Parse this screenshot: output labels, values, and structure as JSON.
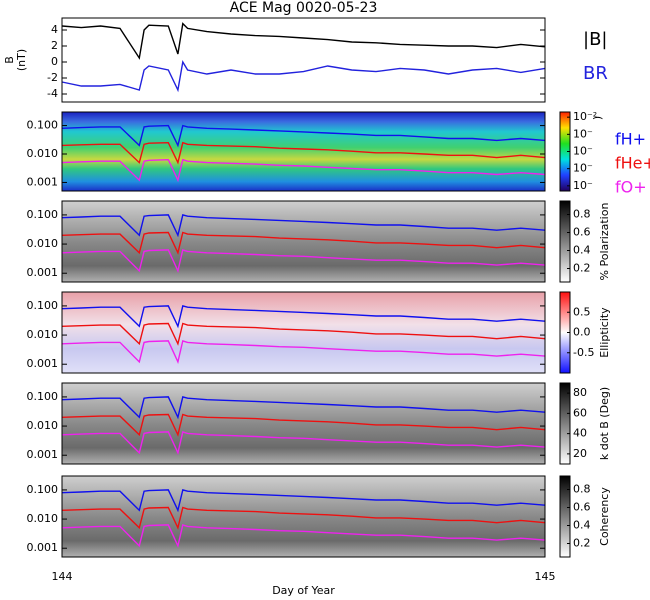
{
  "chart_data": [
    {
      "type": "line",
      "title": "ACE Mag 0020-05-23",
      "ylabel": [
        "B",
        "(nT)"
      ],
      "x": [
        144,
        144.04,
        144.08,
        144.12,
        144.16,
        144.17,
        144.18,
        144.22,
        144.24,
        144.25,
        144.26,
        144.3,
        144.35,
        144.4,
        144.45,
        144.5,
        144.55,
        144.6,
        144.65,
        144.7,
        144.75,
        144.8,
        144.85,
        144.9,
        144.95,
        145
      ],
      "xlim": [
        144,
        145
      ],
      "ylim": [
        -5,
        5.5
      ],
      "yticks": [
        4,
        2,
        0,
        -2,
        -4
      ],
      "series": [
        {
          "name": "|B|",
          "color": "#000000",
          "values": [
            4.5,
            4.3,
            4.5,
            4.2,
            0.5,
            4,
            4.6,
            4.5,
            1,
            4.8,
            4.2,
            3.8,
            3.5,
            3.3,
            3.2,
            3.0,
            2.8,
            2.5,
            2.4,
            2.2,
            2.1,
            2.0,
            2.0,
            1.8,
            2.2,
            1.9
          ]
        },
        {
          "name": "BR",
          "color": "#2222dd",
          "values": [
            -2.5,
            -3,
            -3,
            -2.8,
            -3.5,
            -1,
            -0.5,
            -1,
            -3.5,
            0,
            -1,
            -1.5,
            -1,
            -1.5,
            -1.5,
            -1.2,
            -0.5,
            -1,
            -1.2,
            -0.8,
            -1,
            -1.5,
            -1,
            -0.8,
            -1.3,
            -0.8
          ]
        }
      ]
    },
    {
      "type": "spectrogram",
      "log_y": true,
      "colormap": "rainbow",
      "legend": true,
      "x": [
        144,
        144.04,
        144.08,
        144.12,
        144.16,
        144.17,
        144.18,
        144.22,
        144.24,
        144.25,
        144.26,
        144.3,
        144.35,
        144.4,
        144.45,
        144.5,
        144.55,
        144.6,
        144.65,
        144.7,
        144.75,
        144.8,
        144.85,
        144.9,
        144.95,
        145
      ],
      "xlim": [
        144,
        145
      ],
      "ylim": [
        0.0005,
        0.3
      ],
      "yticks": [
        {
          "value": 0.1,
          "label": "0.100"
        },
        {
          "value": 0.01,
          "label": "0.010"
        },
        0.001
      ],
      "colorbar": {
        "label": ")",
        "log": true,
        "lim": [
          5e-07,
          0.02
        ],
        "ticks": [
          {
            "value": 0.01,
            "label": "10⁻²"
          },
          {
            "value": 0.001,
            "label": "10⁻"
          },
          {
            "value": 0.0001,
            "label": "10⁻"
          },
          {
            "value": 1e-05,
            "label": "10⁻"
          },
          {
            "value": 1e-06,
            "label": "10⁻"
          }
        ]
      },
      "series": [
        {
          "name": "fH+",
          "color": "#1010ee",
          "values": [
            0.08,
            0.085,
            0.09,
            0.09,
            0.02,
            0.09,
            0.095,
            0.1,
            0.02,
            0.1,
            0.09,
            0.08,
            0.075,
            0.07,
            0.065,
            0.06,
            0.055,
            0.05,
            0.045,
            0.045,
            0.04,
            0.035,
            0.035,
            0.03,
            0.035,
            0.03
          ]
        },
        {
          "name": "fHe+",
          "color": "#ee1010",
          "values": [
            0.02,
            0.021,
            0.022,
            0.022,
            0.005,
            0.022,
            0.024,
            0.025,
            0.005,
            0.025,
            0.022,
            0.02,
            0.019,
            0.018,
            0.016,
            0.015,
            0.014,
            0.0125,
            0.011,
            0.011,
            0.01,
            0.009,
            0.009,
            0.0075,
            0.009,
            0.0075
          ]
        },
        {
          "name": "fO+",
          "color": "#ee22ee",
          "values": [
            0.005,
            0.0053,
            0.0056,
            0.0056,
            0.0012,
            0.0056,
            0.006,
            0.0063,
            0.0012,
            0.0063,
            0.0056,
            0.005,
            0.0047,
            0.0044,
            0.004,
            0.0038,
            0.0034,
            0.0031,
            0.0028,
            0.0028,
            0.0025,
            0.0022,
            0.0022,
            0.0019,
            0.0022,
            0.0019
          ]
        }
      ]
    },
    {
      "type": "spectrogram",
      "log_y": true,
      "colormap": "gray",
      "x": [
        144,
        144.04,
        144.08,
        144.12,
        144.16,
        144.17,
        144.18,
        144.22,
        144.24,
        144.25,
        144.26,
        144.3,
        144.35,
        144.4,
        144.45,
        144.5,
        144.55,
        144.6,
        144.65,
        144.7,
        144.75,
        144.8,
        144.85,
        144.9,
        144.95,
        145
      ],
      "xlim": [
        144,
        145
      ],
      "ylim": [
        0.0005,
        0.3
      ],
      "yticks": [
        {
          "value": 0.1,
          "label": "0.100"
        },
        {
          "value": 0.01,
          "label": "0.010"
        },
        0.001
      ],
      "colorbar": {
        "label": "% Polarization",
        "lim": [
          0.05,
          0.95
        ],
        "ticks": [
          0.8,
          0.6,
          0.4,
          0.2
        ]
      },
      "series": [
        {
          "color": "#1010ee",
          "values": [
            0.08,
            0.085,
            0.09,
            0.09,
            0.02,
            0.09,
            0.095,
            0.1,
            0.02,
            0.1,
            0.09,
            0.08,
            0.075,
            0.07,
            0.065,
            0.06,
            0.055,
            0.05,
            0.045,
            0.045,
            0.04,
            0.035,
            0.035,
            0.03,
            0.035,
            0.03
          ]
        },
        {
          "color": "#ee1010",
          "values": [
            0.02,
            0.021,
            0.022,
            0.022,
            0.005,
            0.022,
            0.024,
            0.025,
            0.005,
            0.025,
            0.022,
            0.02,
            0.019,
            0.018,
            0.016,
            0.015,
            0.014,
            0.0125,
            0.011,
            0.011,
            0.01,
            0.009,
            0.009,
            0.0075,
            0.009,
            0.0075
          ]
        },
        {
          "color": "#ee22ee",
          "values": [
            0.005,
            0.0053,
            0.0056,
            0.0056,
            0.0012,
            0.0056,
            0.006,
            0.0063,
            0.0012,
            0.0063,
            0.0056,
            0.005,
            0.0047,
            0.0044,
            0.004,
            0.0038,
            0.0034,
            0.0031,
            0.0028,
            0.0028,
            0.0025,
            0.0022,
            0.0022,
            0.0019,
            0.0022,
            0.0019
          ]
        }
      ]
    },
    {
      "type": "spectrogram",
      "log_y": true,
      "colormap": "bwr",
      "x": [
        144,
        144.04,
        144.08,
        144.12,
        144.16,
        144.17,
        144.18,
        144.22,
        144.24,
        144.25,
        144.26,
        144.3,
        144.35,
        144.4,
        144.45,
        144.5,
        144.55,
        144.6,
        144.65,
        144.7,
        144.75,
        144.8,
        144.85,
        144.9,
        144.95,
        145
      ],
      "xlim": [
        144,
        145
      ],
      "ylim": [
        0.0005,
        0.3
      ],
      "yticks": [
        {
          "value": 0.1,
          "label": "0.100"
        },
        {
          "value": 0.01,
          "label": "0.010"
        },
        0.001
      ],
      "colorbar": {
        "label": "Ellipticity",
        "lim": [
          -1,
          1
        ],
        "ticks": [
          0.5,
          {
            "value": 0,
            "label": "0.0"
          },
          -0.5
        ]
      },
      "series": [
        {
          "color": "#1010ee",
          "values": [
            0.08,
            0.085,
            0.09,
            0.09,
            0.02,
            0.09,
            0.095,
            0.1,
            0.02,
            0.1,
            0.09,
            0.08,
            0.075,
            0.07,
            0.065,
            0.06,
            0.055,
            0.05,
            0.045,
            0.045,
            0.04,
            0.035,
            0.035,
            0.03,
            0.035,
            0.03
          ]
        },
        {
          "color": "#ee1010",
          "values": [
            0.02,
            0.021,
            0.022,
            0.022,
            0.005,
            0.022,
            0.024,
            0.025,
            0.005,
            0.025,
            0.022,
            0.02,
            0.019,
            0.018,
            0.016,
            0.015,
            0.014,
            0.0125,
            0.011,
            0.011,
            0.01,
            0.009,
            0.009,
            0.0075,
            0.009,
            0.0075
          ]
        },
        {
          "color": "#ee22ee",
          "values": [
            0.005,
            0.0053,
            0.0056,
            0.0056,
            0.0012,
            0.0056,
            0.006,
            0.0063,
            0.0012,
            0.0063,
            0.0056,
            0.005,
            0.0047,
            0.0044,
            0.004,
            0.0038,
            0.0034,
            0.0031,
            0.0028,
            0.0028,
            0.0025,
            0.0022,
            0.0022,
            0.0019,
            0.0022,
            0.0019
          ]
        }
      ]
    },
    {
      "type": "spectrogram",
      "log_y": true,
      "colormap": "gray",
      "x": [
        144,
        144.04,
        144.08,
        144.12,
        144.16,
        144.17,
        144.18,
        144.22,
        144.24,
        144.25,
        144.26,
        144.3,
        144.35,
        144.4,
        144.45,
        144.5,
        144.55,
        144.6,
        144.65,
        144.7,
        144.75,
        144.8,
        144.85,
        144.9,
        144.95,
        145
      ],
      "xlim": [
        144,
        145
      ],
      "ylim": [
        0.0005,
        0.3
      ],
      "yticks": [
        {
          "value": 0.1,
          "label": "0.100"
        },
        {
          "value": 0.01,
          "label": "0.010"
        },
        0.001
      ],
      "colorbar": {
        "label": "k dot B (Deg)",
        "lim": [
          10,
          90
        ],
        "ticks": [
          80,
          60,
          40,
          20
        ]
      },
      "series": [
        {
          "color": "#1010ee",
          "values": [
            0.08,
            0.085,
            0.09,
            0.09,
            0.02,
            0.09,
            0.095,
            0.1,
            0.02,
            0.1,
            0.09,
            0.08,
            0.075,
            0.07,
            0.065,
            0.06,
            0.055,
            0.05,
            0.045,
            0.045,
            0.04,
            0.035,
            0.035,
            0.03,
            0.035,
            0.03
          ]
        },
        {
          "color": "#ee1010",
          "values": [
            0.02,
            0.021,
            0.022,
            0.022,
            0.005,
            0.022,
            0.024,
            0.025,
            0.005,
            0.025,
            0.022,
            0.02,
            0.019,
            0.018,
            0.016,
            0.015,
            0.014,
            0.0125,
            0.011,
            0.011,
            0.01,
            0.009,
            0.009,
            0.0075,
            0.009,
            0.0075
          ]
        },
        {
          "color": "#ee22ee",
          "values": [
            0.005,
            0.0053,
            0.0056,
            0.0056,
            0.0012,
            0.0056,
            0.006,
            0.0063,
            0.0012,
            0.0063,
            0.0056,
            0.005,
            0.0047,
            0.0044,
            0.004,
            0.0038,
            0.0034,
            0.0031,
            0.0028,
            0.0028,
            0.0025,
            0.0022,
            0.0022,
            0.0019,
            0.0022,
            0.0019
          ]
        }
      ]
    },
    {
      "type": "spectrogram",
      "log_y": true,
      "colormap": "gray",
      "x": [
        144,
        144.04,
        144.08,
        144.12,
        144.16,
        144.17,
        144.18,
        144.22,
        144.24,
        144.25,
        144.26,
        144.3,
        144.35,
        144.4,
        144.45,
        144.5,
        144.55,
        144.6,
        144.65,
        144.7,
        144.75,
        144.8,
        144.85,
        144.9,
        144.95,
        145
      ],
      "xlim": [
        144,
        145
      ],
      "ylim": [
        0.0005,
        0.3
      ],
      "yticks": [
        {
          "value": 0.1,
          "label": "0.100"
        },
        {
          "value": 0.01,
          "label": "0.010"
        },
        0.001
      ],
      "xticks": [
        144,
        145
      ],
      "xlabel": "Day of Year",
      "colorbar": {
        "label": "Coherency",
        "lim": [
          0.05,
          0.95
        ],
        "ticks": [
          0.8,
          0.6,
          0.4,
          0.2
        ]
      },
      "series": [
        {
          "color": "#1010ee",
          "values": [
            0.08,
            0.085,
            0.09,
            0.09,
            0.02,
            0.09,
            0.095,
            0.1,
            0.02,
            0.1,
            0.09,
            0.08,
            0.075,
            0.07,
            0.065,
            0.06,
            0.055,
            0.05,
            0.045,
            0.045,
            0.04,
            0.035,
            0.035,
            0.03,
            0.035,
            0.03
          ]
        },
        {
          "color": "#ee1010",
          "values": [
            0.02,
            0.021,
            0.022,
            0.022,
            0.005,
            0.022,
            0.024,
            0.025,
            0.005,
            0.025,
            0.022,
            0.02,
            0.019,
            0.018,
            0.016,
            0.015,
            0.014,
            0.0125,
            0.011,
            0.011,
            0.01,
            0.009,
            0.009,
            0.0075,
            0.009,
            0.0075
          ]
        },
        {
          "color": "#ee22ee",
          "values": [
            0.005,
            0.0053,
            0.0056,
            0.0056,
            0.0012,
            0.0056,
            0.006,
            0.0063,
            0.0012,
            0.0063,
            0.0056,
            0.005,
            0.0047,
            0.0044,
            0.004,
            0.0038,
            0.0034,
            0.0031,
            0.0028,
            0.0028,
            0.0025,
            0.0022,
            0.0022,
            0.0019,
            0.0022,
            0.0019
          ]
        }
      ]
    }
  ]
}
